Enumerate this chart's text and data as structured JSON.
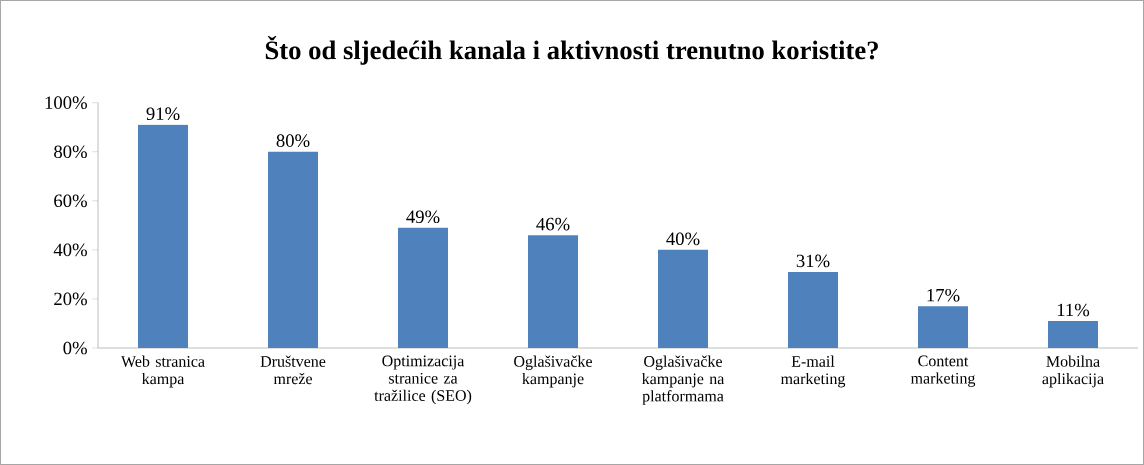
{
  "chart_data": {
    "type": "bar",
    "title": "Što od sljedećih kanala i aktivnosti trenutno koristite?",
    "categories": [
      "Web stranica kampa",
      "Društvene mreže",
      "Optimizacija stranice za tražilice (SEO)",
      "Oglašivačke kampanje",
      "Oglašivačke kampanje na platformama",
      "E-mail marketing",
      "Content marketing",
      "Mobilna aplikacija"
    ],
    "values": [
      91,
      80,
      49,
      46,
      40,
      31,
      17,
      11
    ],
    "value_labels": [
      "91%",
      "80%",
      "49%",
      "46%",
      "40%",
      "31%",
      "17%",
      "11%"
    ],
    "color": "#4f81bd",
    "ylim": [
      0,
      100
    ],
    "yticks": [
      {
        "value": 0,
        "label": "0%"
      },
      {
        "value": 20,
        "label": "20%"
      },
      {
        "value": 40,
        "label": "40%"
      },
      {
        "value": 60,
        "label": "60%"
      },
      {
        "value": 80,
        "label": "80%"
      },
      {
        "value": 100,
        "label": "100%"
      }
    ],
    "grid": false
  }
}
